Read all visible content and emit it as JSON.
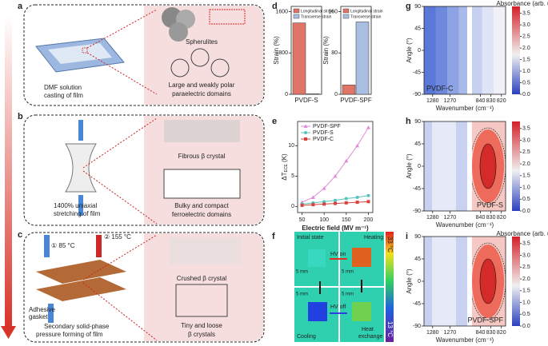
{
  "panels": {
    "a": {
      "label": "a",
      "process": "DMF solution",
      "process2": "casting of film",
      "crystal": "Spherulites",
      "domains": [
        "Large and weakly polar",
        "paraelectric domains"
      ]
    },
    "b": {
      "label": "b",
      "process": "1400% uniaxial",
      "process2": "stretching of film",
      "crystal": "Fibrous β crystal",
      "domains": [
        "Bulky and compact",
        "ferroelectric domains"
      ]
    },
    "c": {
      "label": "c",
      "temp1": "① 85 °C",
      "temp2": "② 155 °C",
      "gasket": [
        "Adhesive",
        "gasket"
      ],
      "process": "Secondary solid-phase",
      "process2": "pressure forming of film",
      "crystal": "Crushed β crystal",
      "domains": [
        "Tiny and loose",
        "β crystals"
      ]
    },
    "f": {
      "label": "f",
      "states": [
        "Initial state",
        "Heating",
        "Cooling"
      ],
      "exchange": [
        "Heat",
        "exchange"
      ],
      "hv_on": "HV on",
      "hv_off": "HV off",
      "scale": "5 mm",
      "cmax": "33 °C",
      "cmin": "13 °C"
    },
    "d": {
      "label": "d"
    },
    "e": {
      "label": "e"
    },
    "g": {
      "label": "g"
    },
    "h": {
      "label": "h"
    },
    "i": {
      "label": "i"
    }
  },
  "chart_data": [
    {
      "type": "bar",
      "categories": [
        "PVDF-S"
      ],
      "ylabel": "Strain (%)",
      "ylim": [
        0,
        1700
      ],
      "yticks": [
        0,
        800,
        1600
      ],
      "series": [
        {
          "name": "Longitudinal strain",
          "color": "#e07466",
          "values": [
            1380
          ]
        },
        {
          "name": "Transverse strain",
          "color": "#a9bfe2",
          "values": [
            10
          ]
        }
      ]
    },
    {
      "type": "bar",
      "categories": [
        "PVDF-SPF"
      ],
      "ylabel": "Strain (%)",
      "ylim": [
        0,
        170
      ],
      "yticks": [
        0,
        80,
        160
      ],
      "series": [
        {
          "name": "Longitudinal strain",
          "color": "#e07466",
          "values": [
            18
          ]
        },
        {
          "name": "Transverse strain",
          "color": "#a9bfe2",
          "values": [
            140
          ]
        }
      ]
    },
    {
      "type": "line",
      "xlabel": "Electric field (MV m⁻¹)",
      "ylabel": [
        "ΔT",
        "ECE",
        " (K)"
      ],
      "x": [
        50,
        75,
        100,
        125,
        150,
        175,
        200
      ],
      "xlim": [
        40,
        210
      ],
      "xticks": [
        50,
        100,
        150,
        200
      ],
      "ylim": [
        -1,
        14
      ],
      "yticks": [
        0,
        5,
        10
      ],
      "series": [
        {
          "name": "PVDF-SPF",
          "color": "#e08ad8",
          "marker": "triangle",
          "values": [
            0.7,
            1.5,
            3,
            5,
            7.5,
            10,
            13
          ]
        },
        {
          "name": "PVDF-S",
          "color": "#55c4bf",
          "marker": "circle",
          "values": [
            0.4,
            0.6,
            0.8,
            1.0,
            1.3,
            1.5,
            1.8
          ]
        },
        {
          "name": "PVDF-C",
          "color": "#d9423a",
          "marker": "square",
          "values": [
            0.2,
            0.3,
            0.4,
            0.5,
            0.6,
            0.7,
            0.8
          ]
        }
      ]
    },
    {
      "type": "contour",
      "sample": "PVDF-C",
      "title": "Absorbance (arb. units)",
      "xlabel": "Wavenumber (cm⁻¹)",
      "ylabel": "Angle (°)",
      "xticks": [
        1280,
        1270,
        840,
        830,
        820
      ],
      "ylim": [
        -90,
        90
      ],
      "yticks": [
        -90,
        -45,
        0,
        45,
        90
      ],
      "clim": [
        0,
        3.8
      ],
      "cticks": [
        {
          "value": 0,
          "label": "0.0"
        },
        0.5,
        {
          "value": 1,
          "label": "1.0"
        },
        1.5,
        {
          "value": 2,
          "label": "2.0"
        },
        2.5,
        {
          "value": 3,
          "label": "3.0"
        },
        3.5
      ]
    },
    {
      "type": "contour",
      "sample": "PVDF-S",
      "xlabel": "Wavenumber (cm⁻¹)",
      "ylabel": "Angle (°)",
      "xticks": [
        1280,
        1270,
        840,
        830,
        820
      ],
      "ylim": [
        -90,
        90
      ],
      "yticks": [
        -90,
        -45,
        0,
        45,
        90
      ],
      "clim": [
        0,
        3.8
      ],
      "cticks": [
        {
          "value": 0,
          "label": "0.0"
        },
        0.5,
        {
          "value": 1,
          "label": "1.0"
        },
        1.5,
        {
          "value": 2,
          "label": "2.0"
        },
        2.5,
        {
          "value": 3,
          "label": "3.0"
        },
        3.5
      ]
    },
    {
      "type": "contour",
      "sample": "PVDF-SPF",
      "title": "Absorbance (arb. units)",
      "xlabel": "Wavenumber (cm⁻¹)",
      "ylabel": "Angle (°)",
      "xticks": [
        1280,
        1270,
        840,
        830,
        820
      ],
      "ylim": [
        -90,
        90
      ],
      "yticks": [
        -90,
        -45,
        0,
        45,
        90
      ],
      "clim": [
        0,
        3.8
      ],
      "cticks": [
        {
          "value": 0,
          "label": "0.0"
        },
        0.5,
        {
          "value": 1,
          "label": "1.0"
        },
        1.5,
        {
          "value": 2,
          "label": "2.0"
        },
        2.5,
        {
          "value": 3,
          "label": "3.0"
        },
        3.5
      ]
    }
  ]
}
